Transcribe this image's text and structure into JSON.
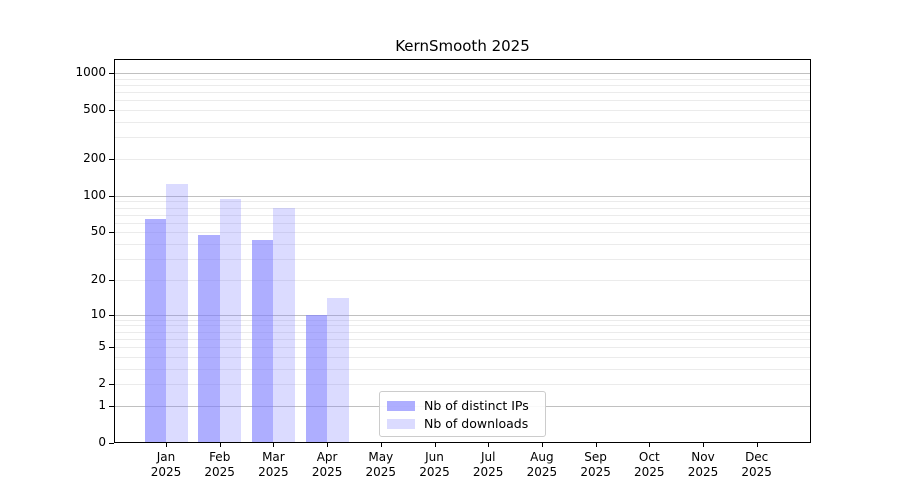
{
  "chart_data": {
    "type": "bar",
    "title": "KernSmooth 2025",
    "year_label": "2025",
    "categories": [
      "Jan",
      "Feb",
      "Mar",
      "Apr",
      "May",
      "Jun",
      "Jul",
      "Aug",
      "Sep",
      "Oct",
      "Nov",
      "Dec"
    ],
    "series": [
      {
        "name": "Nb of distinct IPs",
        "color": "rgba(124,124,255,0.62)",
        "values": [
          65,
          48,
          43,
          10,
          0,
          0,
          0,
          0,
          0,
          0,
          0,
          0
        ]
      },
      {
        "name": "Nb of downloads",
        "color": "rgba(124,124,255,0.28)",
        "values": [
          125,
          94,
          80,
          14,
          0,
          0,
          0,
          0,
          0,
          0,
          0,
          0
        ]
      }
    ],
    "xlabel": "",
    "ylabel": "",
    "yscale": "log10(1+y)",
    "ylim": [
      0,
      1300
    ],
    "y_tick_labels": [
      1000,
      500,
      200,
      100,
      50,
      20,
      10,
      5,
      2,
      1,
      0
    ],
    "grid": {
      "on": true,
      "major_values": [
        1,
        10,
        100,
        1000
      ],
      "minor_values": [
        2,
        3,
        4,
        5,
        6,
        7,
        8,
        9,
        20,
        30,
        40,
        50,
        60,
        70,
        80,
        90,
        200,
        300,
        400,
        500,
        600,
        700,
        800,
        900
      ],
      "major_color": "#c0c0c0",
      "minor_color": "#ebebeb"
    },
    "legend": {
      "position": "lower center",
      "entries": [
        "Nb of distinct IPs",
        "Nb of downloads"
      ]
    },
    "axis_color": "#000000",
    "background_color": "#ffffff"
  }
}
